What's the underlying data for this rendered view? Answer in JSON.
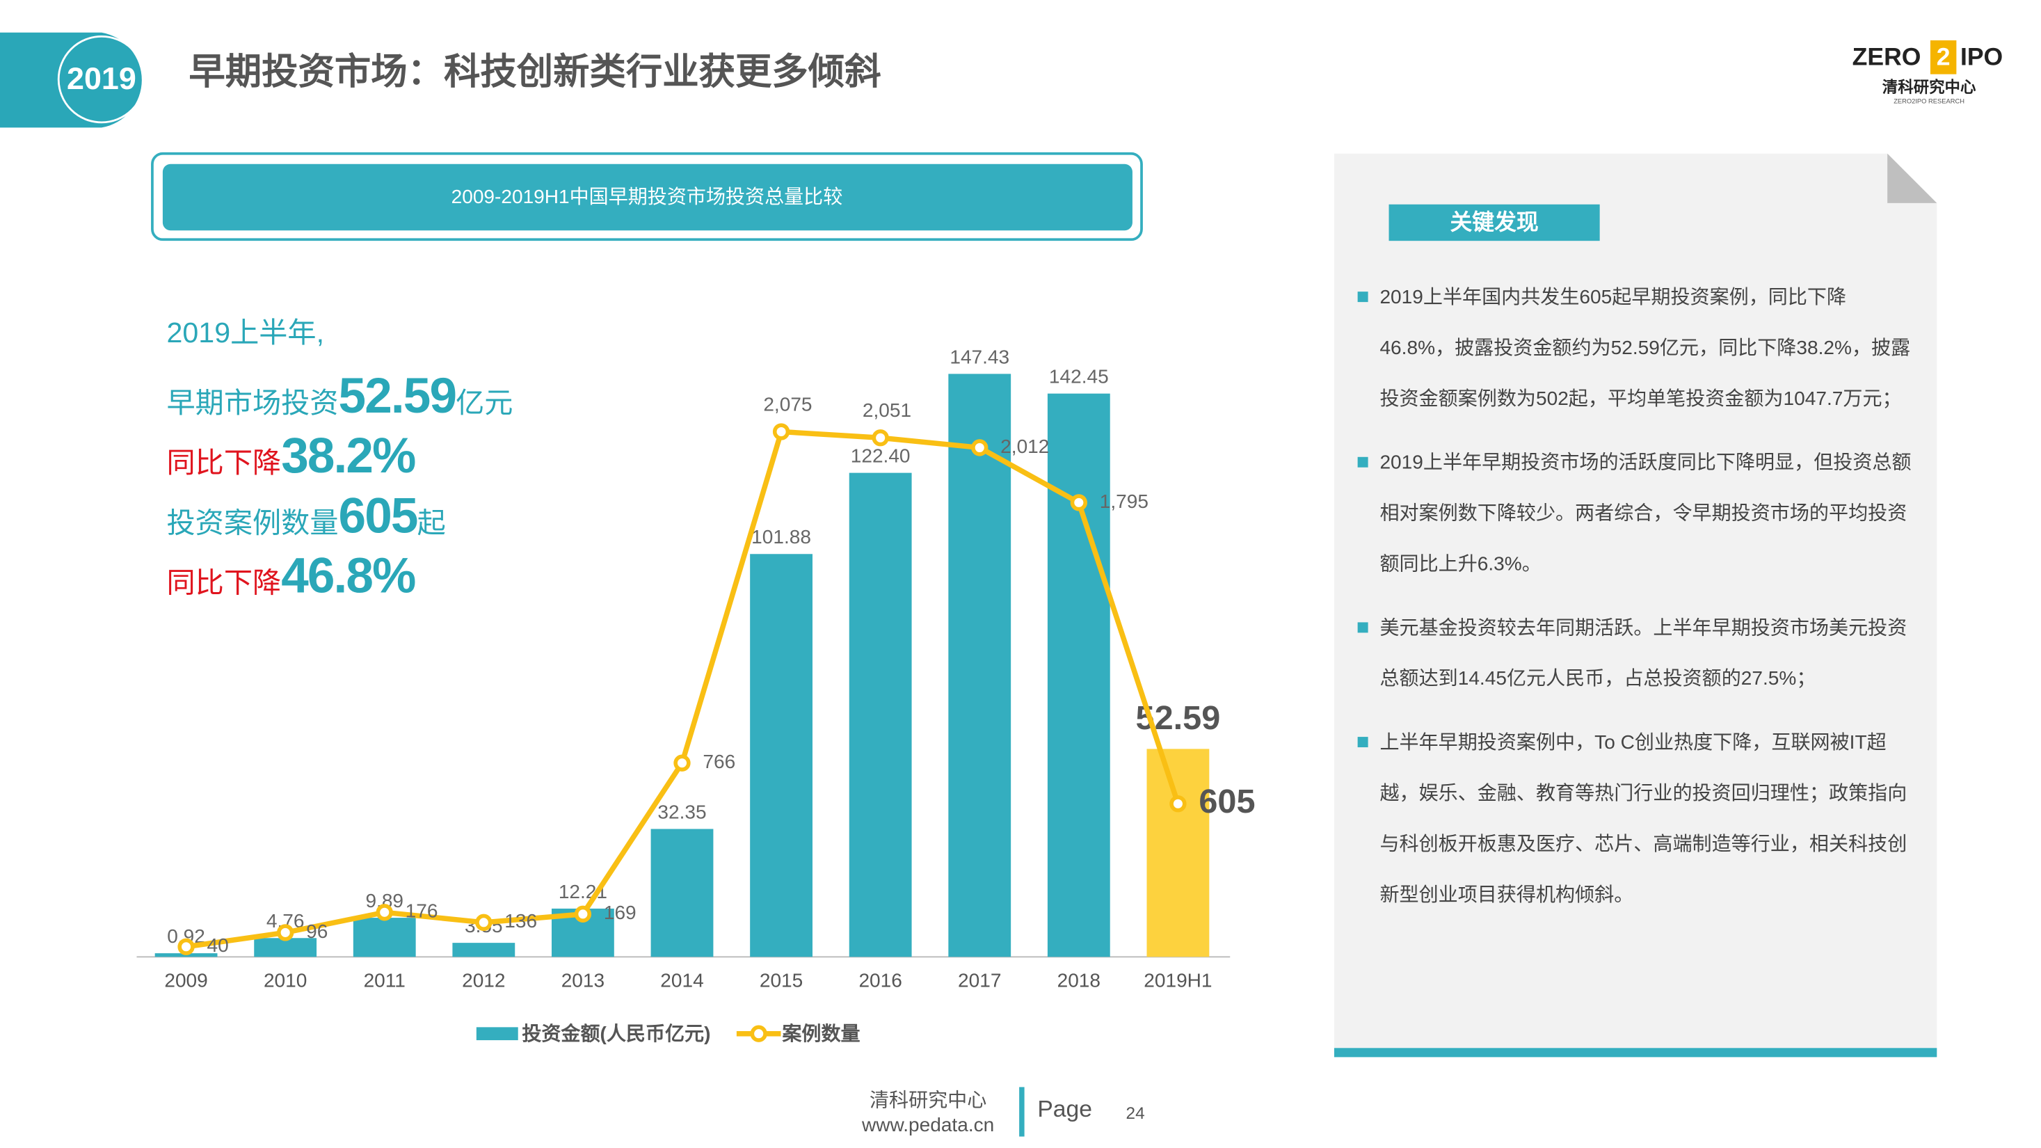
{
  "header": {
    "badge": "2019",
    "title": "早期投资市场：科技创新类行业获更多倾斜",
    "logo": {
      "zero": "ZERO",
      "two": "2",
      "ipo": "IPO",
      "cn": "清科研究中心",
      "en": "ZERO2IPO RESEARCH"
    }
  },
  "chart_data": {
    "type": "bar-line",
    "title": "2009-2019H1中国早期投资市场投资总量比较",
    "categories": [
      "2009",
      "2010",
      "2011",
      "2012",
      "2013",
      "2014",
      "2015",
      "2016",
      "2017",
      "2018",
      "2019H1"
    ],
    "series": [
      {
        "name": "投资金额(人民币亿元)",
        "type": "bar",
        "color": "#34aebf",
        "colors": [
          "#34aebf",
          "#34aebf",
          "#34aebf",
          "#34aebf",
          "#34aebf",
          "#34aebf",
          "#34aebf",
          "#34aebf",
          "#34aebf",
          "#34aebf",
          "#fdd23e"
        ],
        "values": [
          0.92,
          4.76,
          9.89,
          3.55,
          12.21,
          32.35,
          101.88,
          122.4,
          147.43,
          142.45,
          52.59
        ],
        "value_labels": [
          "0.92",
          "4.76",
          "9.89",
          "3.55",
          "12.21",
          "32.35",
          "101.88",
          "122.40",
          "147.43",
          "142.45",
          "52.59"
        ]
      },
      {
        "name": "案例数量",
        "type": "line",
        "axis": "y2",
        "color": "#f9bf14",
        "values": [
          40,
          96,
          176,
          136,
          169,
          766,
          2075,
          2051,
          2012,
          1795,
          605
        ],
        "value_labels": [
          "40",
          "96",
          "176",
          "136",
          "169",
          "766",
          "2,075",
          "2,051",
          "2,012",
          "1,795",
          "605"
        ]
      }
    ],
    "ylim": [
      0,
      160
    ],
    "y2lim": [
      0,
      2500
    ]
  },
  "highlights": [
    {
      "color": "#2aa7b8",
      "parts": [
        "2019上半年,"
      ]
    },
    {
      "color": "#2aa7b8",
      "parts": [
        "早期市场投资",
        "52.59",
        "亿元"
      ]
    },
    {
      "color": "#e0141e",
      "parts": [
        "同比下降",
        "38.2%"
      ]
    },
    {
      "color": "#2aa7b8",
      "parts": [
        "投资案例数量",
        "605",
        "起"
      ]
    },
    {
      "color": "#e0141e",
      "parts": [
        "同比下降",
        "46.8%"
      ]
    }
  ],
  "findings": {
    "title": "关键发现",
    "items": [
      "2019上半年国内共发生605起早期投资案例，同比下降46.8%，披露投资金额约为52.59亿元，同比下降38.2%，披露投资金额案例数为502起，平均单笔投资金额为1047.7万元；",
      "2019上半年早期投资市场的活跃度同比下降明显，但投资总额相对案例数下降较少。两者综合，令早期投资市场的平均投资额同比上升6.3%。",
      "美元基金投资较去年同期活跃。上半年早期投资市场美元投资总额达到14.45亿元人民币，占总投资额的27.5%；",
      "上半年早期投资案例中，To C创业热度下降，互联网被IT超越，娱乐、金融、教育等热门行业的投资回归理性；政策指向与科创板开板惠及医疗、芯片、高端制造等行业，相关科技创新型创业项目获得机构倾斜。"
    ]
  },
  "footer": {
    "org": "清科研究中心",
    "url": "www.pedata.cn",
    "page_label": "Page",
    "page": "24"
  }
}
